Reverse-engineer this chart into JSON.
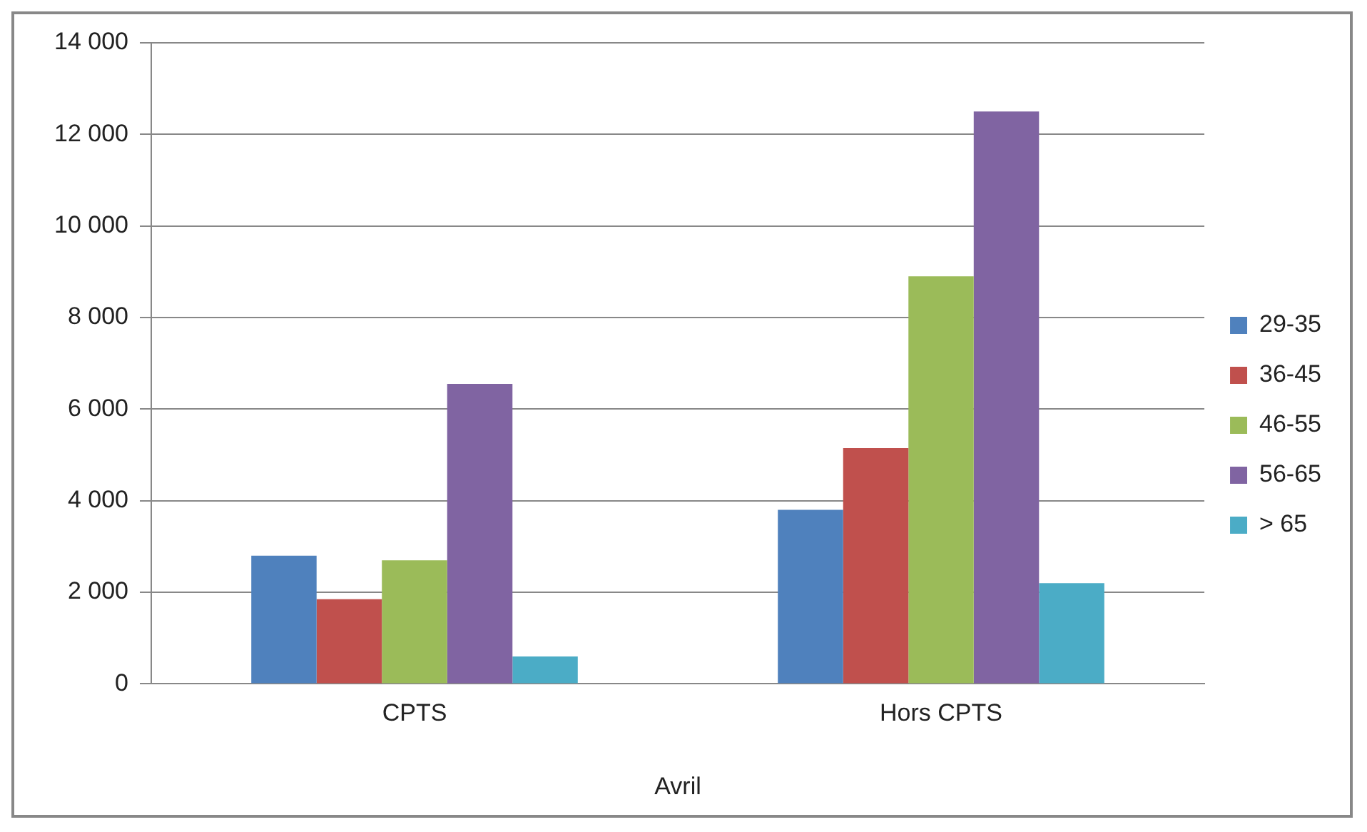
{
  "chart_data": {
    "type": "bar",
    "categories": [
      "CPTS",
      "Hors CPTS"
    ],
    "xlabel": "Avril",
    "series": [
      {
        "name": "29-35",
        "color": "#4f81bd",
        "values": [
          2800,
          3800
        ]
      },
      {
        "name": "36-45",
        "color": "#c0504d",
        "values": [
          1850,
          5150
        ]
      },
      {
        "name": "46-55",
        "color": "#9bbb59",
        "values": [
          2700,
          8900
        ]
      },
      {
        "name": "56-65",
        "color": "#8064a2",
        "values": [
          6550,
          12500
        ]
      },
      {
        "name": "> 65",
        "color": "#4bacc6",
        "values": [
          600,
          2200
        ]
      }
    ],
    "ylim": [
      0,
      14000
    ],
    "yticks": [
      {
        "value": 0,
        "label": "0"
      },
      {
        "value": 2000,
        "label": "2 000"
      },
      {
        "value": 4000,
        "label": "4 000"
      },
      {
        "value": 6000,
        "label": "6 000"
      },
      {
        "value": 8000,
        "label": "8 000"
      },
      {
        "value": 10000,
        "label": "10 000"
      },
      {
        "value": 12000,
        "label": "12 000"
      },
      {
        "value": 14000,
        "label": "14 000"
      }
    ],
    "grid": "y",
    "legend": "right"
  }
}
